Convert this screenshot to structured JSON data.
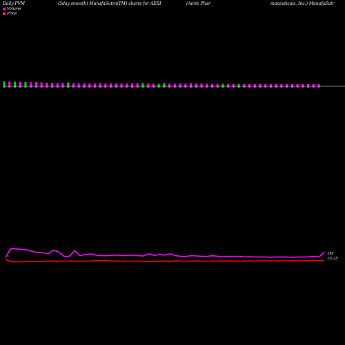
{
  "header": {
    "left": "Daily PVM",
    "center": "(5day smooth) MunafaSutra(TM) charts for AERI",
    "right_a": "(Aerie  Phar",
    "right_b": "maceuticals, Inc.) MunafaSutr"
  },
  "legend": {
    "volume_label": "Volume",
    "price_label": "Price",
    "volume_color": "#ff00ff",
    "price_color": "#ff3333"
  },
  "colors": {
    "background": "#000000",
    "baseline": "#ffffff",
    "volume_up": "#ff00ff",
    "volume_down": "#00cc00",
    "price_line": "#ff0000",
    "volume_line": "#ff00ff"
  },
  "chart_data": {
    "type": "line",
    "title": "(5day smooth) MunafaSutra(TM) charts for AERI",
    "end_labels": {
      "volume_line": "1M",
      "price_line": "15.25"
    },
    "volume_bars": [
      {
        "value": 1.0,
        "dir": "down"
      },
      {
        "value": 0.95,
        "dir": "up"
      },
      {
        "value": 0.9,
        "dir": "down"
      },
      {
        "value": 0.85,
        "dir": "up"
      },
      {
        "value": 0.8,
        "dir": "down"
      },
      {
        "value": 0.75,
        "dir": "up"
      },
      {
        "value": 0.85,
        "dir": "up"
      },
      {
        "value": 0.7,
        "dir": "up"
      },
      {
        "value": 0.6,
        "dir": "up"
      },
      {
        "value": 0.55,
        "dir": "up"
      },
      {
        "value": 0.5,
        "dir": "up"
      },
      {
        "value": 0.55,
        "dir": "up"
      },
      {
        "value": 0.7,
        "dir": "down"
      },
      {
        "value": 0.5,
        "dir": "up"
      },
      {
        "value": 0.45,
        "dir": "up"
      },
      {
        "value": 0.45,
        "dir": "up"
      },
      {
        "value": 0.45,
        "dir": "up"
      },
      {
        "value": 0.4,
        "dir": "up"
      },
      {
        "value": 0.45,
        "dir": "up"
      },
      {
        "value": 0.4,
        "dir": "up"
      },
      {
        "value": 0.45,
        "dir": "up"
      },
      {
        "value": 0.4,
        "dir": "up"
      },
      {
        "value": 0.4,
        "dir": "up"
      },
      {
        "value": 0.45,
        "dir": "up"
      },
      {
        "value": 0.4,
        "dir": "up"
      },
      {
        "value": 0.5,
        "dir": "up"
      },
      {
        "value": 0.55,
        "dir": "down"
      },
      {
        "value": 0.4,
        "dir": "up"
      },
      {
        "value": 0.35,
        "dir": "up"
      },
      {
        "value": 0.3,
        "dir": "down"
      },
      {
        "value": 0.5,
        "dir": "down"
      },
      {
        "value": 0.35,
        "dir": "up"
      },
      {
        "value": 0.35,
        "dir": "up"
      },
      {
        "value": 0.4,
        "dir": "up"
      },
      {
        "value": 0.35,
        "dir": "up"
      },
      {
        "value": 0.5,
        "dir": "up"
      },
      {
        "value": 0.4,
        "dir": "up"
      },
      {
        "value": 0.45,
        "dir": "up"
      },
      {
        "value": 0.35,
        "dir": "up"
      },
      {
        "value": 0.3,
        "dir": "up"
      },
      {
        "value": 0.3,
        "dir": "up"
      },
      {
        "value": 0.35,
        "dir": "down"
      },
      {
        "value": 0.3,
        "dir": "up"
      },
      {
        "value": 0.3,
        "dir": "up"
      },
      {
        "value": 0.3,
        "dir": "down"
      },
      {
        "value": 0.25,
        "dir": "up"
      },
      {
        "value": 0.25,
        "dir": "up"
      },
      {
        "value": 0.25,
        "dir": "up"
      },
      {
        "value": 0.25,
        "dir": "up"
      },
      {
        "value": 0.25,
        "dir": "up"
      },
      {
        "value": 0.25,
        "dir": "up"
      },
      {
        "value": 0.25,
        "dir": "up"
      },
      {
        "value": 0.25,
        "dir": "up"
      },
      {
        "value": 0.25,
        "dir": "up"
      },
      {
        "value": 0.25,
        "dir": "up"
      },
      {
        "value": 0.25,
        "dir": "up"
      },
      {
        "value": 0.25,
        "dir": "up"
      },
      {
        "value": 0.25,
        "dir": "up"
      },
      {
        "value": 0.25,
        "dir": "up"
      },
      {
        "value": 0.25,
        "dir": "up"
      }
    ],
    "volume_line": [
      0.15,
      0.9,
      0.85,
      0.8,
      0.78,
      0.65,
      0.55,
      0.55,
      0.45,
      0.75,
      0.6,
      0.25,
      0.25,
      0.7,
      0.3,
      0.4,
      0.45,
      0.35,
      0.3,
      0.3,
      0.32,
      0.35,
      0.3,
      0.32,
      0.35,
      0.3,
      0.28,
      0.45,
      0.32,
      0.4,
      0.35,
      0.45,
      0.3,
      0.25,
      0.25,
      0.3,
      0.28,
      0.25,
      0.25,
      0.3,
      0.25,
      0.22,
      0.25,
      0.25,
      0.25,
      0.2,
      0.22,
      0.2,
      0.2,
      0.2,
      0.18,
      0.2,
      0.2,
      0.2,
      0.18,
      0.2,
      0.2,
      0.2,
      0.25,
      0.2,
      0.6
    ],
    "price_line": [
      0.55,
      0.2,
      0.15,
      0.15,
      0.2,
      0.2,
      0.22,
      0.25,
      0.3,
      0.3,
      0.25,
      0.3,
      0.3,
      0.3,
      0.28,
      0.28,
      0.3,
      0.35,
      0.4,
      0.35,
      0.3,
      0.3,
      0.28,
      0.28,
      0.28,
      0.28,
      0.25,
      0.25,
      0.25,
      0.28,
      0.3,
      0.2,
      0.35,
      0.3,
      0.28,
      0.3,
      0.32,
      0.28,
      0.28,
      0.3,
      0.3,
      0.3,
      0.32,
      0.3,
      0.3,
      0.3,
      0.32,
      0.3,
      0.32,
      0.32,
      0.32,
      0.33,
      0.33,
      0.33,
      0.34,
      0.34,
      0.35,
      0.36,
      0.38,
      0.38,
      0.4
    ]
  }
}
